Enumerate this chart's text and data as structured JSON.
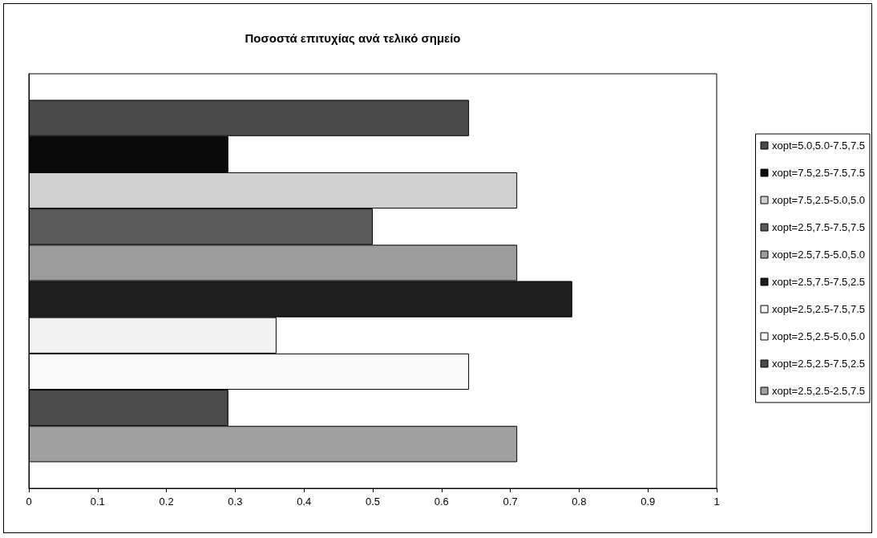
{
  "chart_data": {
    "type": "bar",
    "orientation": "horizontal",
    "title": "Ποσοστά επιτυχίας ανά τελικό σημείο",
    "categories": [
      null
    ],
    "series": [
      {
        "name": "xopt=5.0,5.0-7.5,7.5",
        "color": "#4a4a4a",
        "values": [
          0.64
        ]
      },
      {
        "name": "xopt=7.5,2.5-7.5,7.5",
        "color": "#0a0a0a",
        "values": [
          0.29
        ]
      },
      {
        "name": "xopt=7.5,2.5-5.0,5.0",
        "color": "#d0d0d0",
        "values": [
          0.71
        ]
      },
      {
        "name": "xopt=2.5,7.5-7.5,7.5",
        "color": "#5a5a5a",
        "values": [
          0.5
        ]
      },
      {
        "name": "xopt=2.5,7.5-5.0,5.0",
        "color": "#9c9c9c",
        "values": [
          0.71
        ]
      },
      {
        "name": "xopt=2.5,7.5-7.5,2.5",
        "color": "#1e1e1e",
        "values": [
          0.79
        ]
      },
      {
        "name": "xopt=2.5,2.5-7.5,7.5",
        "color": "#f3f3f3",
        "values": [
          0.36
        ]
      },
      {
        "name": "xopt=2.5,2.5-5.0,5.0",
        "color": "#fafafa",
        "values": [
          0.64
        ]
      },
      {
        "name": "xopt=2.5,2.5-7.5,2.5",
        "color": "#4b4b4b",
        "values": [
          0.29
        ]
      },
      {
        "name": "xopt=2.5,2.5-2.5,7.5",
        "color": "#a0a0a0",
        "values": [
          0.71
        ]
      }
    ],
    "xlim": [
      0,
      1
    ],
    "xticks": [
      0,
      0.1,
      0.2,
      0.3,
      0.4,
      0.5,
      0.6,
      0.7,
      0.8,
      0.9,
      1
    ],
    "grid": false,
    "legend": "right"
  }
}
